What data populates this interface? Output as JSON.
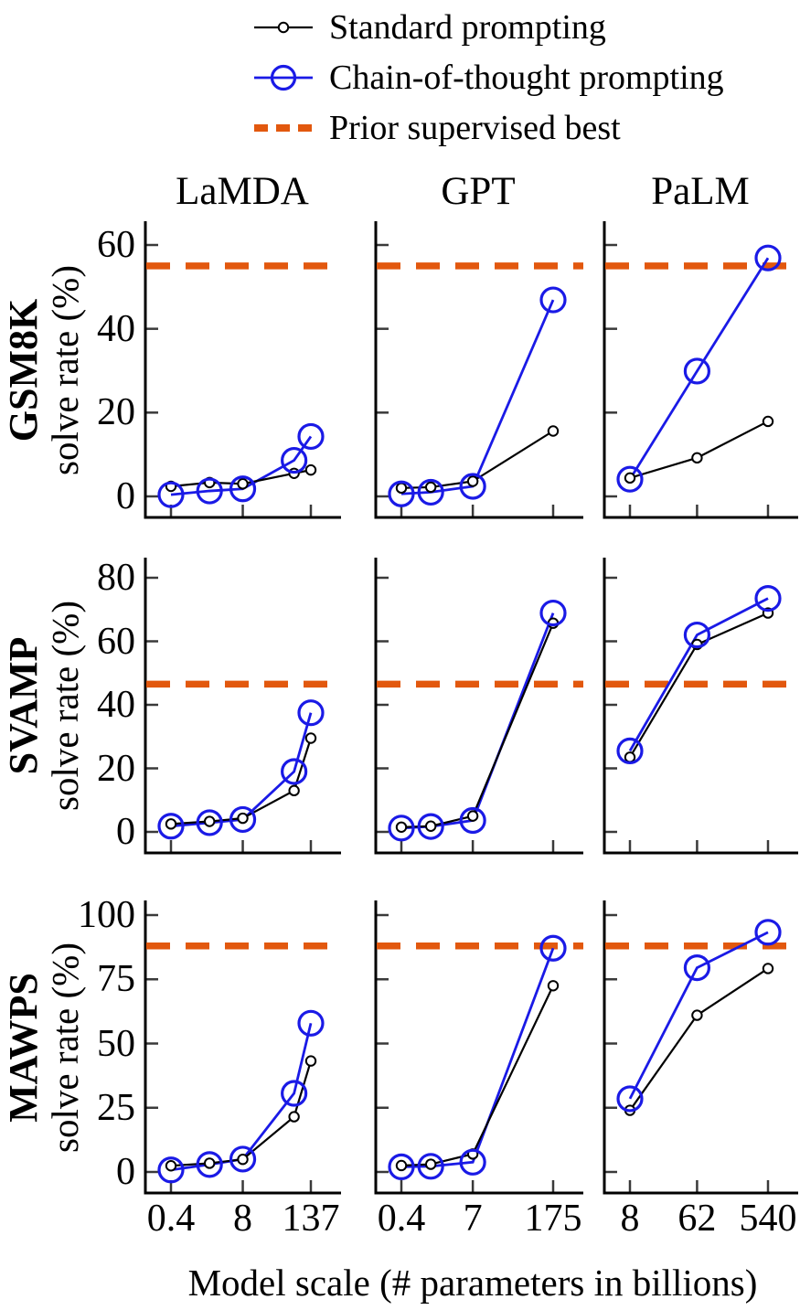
{
  "figure": {
    "background": "#ffffff",
    "colors": {
      "standard": "#000000",
      "cot": "#1a1ae6",
      "prior": "#e2580e",
      "axis": "#000000",
      "tick": "#3a3a3a"
    },
    "legend": {
      "position": "top",
      "items": [
        {
          "label": "Standard prompting",
          "key": "standard",
          "marker": "small-open-circle",
          "line": "solid-black"
        },
        {
          "label": "Chain-of-thought prompting",
          "key": "cot",
          "marker": "large-open-circle",
          "line": "solid-blue"
        },
        {
          "label": "Prior supervised best",
          "key": "prior",
          "marker": "none",
          "line": "dashed-orange"
        }
      ]
    },
    "columns": [
      {
        "title": "LaMDA"
      },
      {
        "title": "GPT"
      },
      {
        "title": "PaLM"
      }
    ],
    "rows": [
      {
        "benchmark": "GSM8K",
        "ylabel": "solve rate (%)"
      },
      {
        "benchmark": "SVAMP",
        "ylabel": "solve rate (%)"
      },
      {
        "benchmark": "MAWPS",
        "ylabel": "solve rate (%)"
      }
    ],
    "xlabel": "Model scale (# parameters in billions)",
    "x_axis_scale": "log",
    "grid": false
  },
  "chart_data": [
    {
      "type": "line",
      "benchmark": "GSM8K",
      "model": "LaMDA",
      "x": [
        0.4,
        2,
        8,
        68,
        137
      ],
      "xtick_values": [
        0.4,
        8,
        137
      ],
      "xtick_labels": [
        "0.4",
        "8",
        "137"
      ],
      "yticks": [
        0,
        20,
        40,
        60
      ],
      "ylim": [
        0,
        65
      ],
      "prior_supervised_best": 55,
      "series": [
        {
          "name": "Standard prompting",
          "values": [
            2.4,
            3.3,
            3.0,
            5.5,
            6.3
          ]
        },
        {
          "name": "Chain-of-thought prompting",
          "values": [
            0.4,
            1.3,
            1.8,
            8.6,
            14.3
          ]
        }
      ]
    },
    {
      "type": "line",
      "benchmark": "GSM8K",
      "model": "GPT",
      "x": [
        0.4,
        1.3,
        7,
        175
      ],
      "xtick_values": [
        0.4,
        7,
        175
      ],
      "xtick_labels": [
        "0.4",
        "7",
        "175"
      ],
      "yticks": [
        0,
        20,
        40,
        60
      ],
      "ylim": [
        0,
        65
      ],
      "prior_supervised_best": 55,
      "series": [
        {
          "name": "Standard prompting",
          "values": [
            2.0,
            2.2,
            3.6,
            15.6
          ]
        },
        {
          "name": "Chain-of-thought prompting",
          "values": [
            0.6,
            1.0,
            2.4,
            46.9
          ]
        }
      ]
    },
    {
      "type": "line",
      "benchmark": "GSM8K",
      "model": "PaLM",
      "x": [
        8,
        62,
        540
      ],
      "xtick_values": [
        8,
        62,
        540
      ],
      "xtick_labels": [
        "8",
        "62",
        "540"
      ],
      "yticks": [
        0,
        20,
        40,
        60
      ],
      "ylim": [
        0,
        65
      ],
      "prior_supervised_best": 55,
      "series": [
        {
          "name": "Standard prompting",
          "values": [
            4.4,
            9.2,
            17.9
          ]
        },
        {
          "name": "Chain-of-thought prompting",
          "values": [
            4.1,
            29.9,
            56.9
          ]
        }
      ]
    },
    {
      "type": "line",
      "benchmark": "SVAMP",
      "model": "LaMDA",
      "x": [
        0.4,
        2,
        8,
        68,
        137
      ],
      "xtick_values": [
        0.4,
        8,
        137
      ],
      "xtick_labels": [
        "0.4",
        "8",
        "137"
      ],
      "yticks": [
        0,
        20,
        40,
        60,
        80
      ],
      "ylim": [
        0,
        86
      ],
      "prior_supervised_best": 46.5,
      "series": [
        {
          "name": "Standard prompting",
          "values": [
            2.5,
            3.3,
            4.3,
            13.0,
            29.5
          ]
        },
        {
          "name": "Chain-of-thought prompting",
          "values": [
            1.8,
            2.9,
            3.9,
            19.0,
            37.5
          ]
        }
      ]
    },
    {
      "type": "line",
      "benchmark": "SVAMP",
      "model": "GPT",
      "x": [
        0.4,
        1.3,
        7,
        175
      ],
      "xtick_values": [
        0.4,
        7,
        175
      ],
      "xtick_labels": [
        "0.4",
        "7",
        "175"
      ],
      "yticks": [
        0,
        20,
        40,
        60,
        80
      ],
      "ylim": [
        0,
        86
      ],
      "prior_supervised_best": 46.5,
      "series": [
        {
          "name": "Standard prompting",
          "values": [
            1.5,
            1.8,
            5.0,
            65.7
          ]
        },
        {
          "name": "Chain-of-thought prompting",
          "values": [
            1.2,
            1.7,
            3.6,
            68.9
          ]
        }
      ]
    },
    {
      "type": "line",
      "benchmark": "SVAMP",
      "model": "PaLM",
      "x": [
        8,
        62,
        540
      ],
      "xtick_values": [
        8,
        62,
        540
      ],
      "xtick_labels": [
        "8",
        "62",
        "540"
      ],
      "yticks": [
        0,
        20,
        40,
        60,
        80
      ],
      "ylim": [
        0,
        86
      ],
      "prior_supervised_best": 46.5,
      "series": [
        {
          "name": "Standard prompting",
          "values": [
            23.5,
            59.0,
            68.9
          ]
        },
        {
          "name": "Chain-of-thought prompting",
          "values": [
            25.5,
            62.0,
            73.5
          ]
        }
      ]
    },
    {
      "type": "line",
      "benchmark": "MAWPS",
      "model": "LaMDA",
      "x": [
        0.4,
        2,
        8,
        68,
        137
      ],
      "xtick_values": [
        0.4,
        8,
        137
      ],
      "xtick_labels": [
        "0.4",
        "8",
        "137"
      ],
      "yticks": [
        0,
        25,
        50,
        75,
        100
      ],
      "ylim": [
        0,
        105
      ],
      "prior_supervised_best": 88,
      "series": [
        {
          "name": "Standard prompting",
          "values": [
            2.4,
            3.4,
            4.9,
            21.5,
            43.2
          ]
        },
        {
          "name": "Chain-of-thought prompting",
          "values": [
            0.8,
            2.9,
            5.0,
            30.6,
            57.9
          ]
        }
      ]
    },
    {
      "type": "line",
      "benchmark": "MAWPS",
      "model": "GPT",
      "x": [
        0.4,
        1.3,
        7,
        175
      ],
      "xtick_values": [
        0.4,
        7,
        175
      ],
      "xtick_labels": [
        "0.4",
        "7",
        "175"
      ],
      "yticks": [
        0,
        25,
        50,
        75,
        100
      ],
      "ylim": [
        0,
        105
      ],
      "prior_supervised_best": 88,
      "series": [
        {
          "name": "Standard prompting",
          "values": [
            2.5,
            3.0,
            7.0,
            72.5
          ]
        },
        {
          "name": "Chain-of-thought prompting",
          "values": [
            2.0,
            2.2,
            3.8,
            87.1
          ]
        }
      ]
    },
    {
      "type": "line",
      "benchmark": "MAWPS",
      "model": "PaLM",
      "x": [
        8,
        62,
        540
      ],
      "xtick_values": [
        8,
        62,
        540
      ],
      "xtick_labels": [
        "8",
        "62",
        "540"
      ],
      "yticks": [
        0,
        25,
        50,
        75,
        100
      ],
      "ylim": [
        0,
        105
      ],
      "prior_supervised_best": 88,
      "series": [
        {
          "name": "Standard prompting",
          "values": [
            24.0,
            61.0,
            79.2
          ]
        },
        {
          "name": "Chain-of-thought prompting",
          "values": [
            28.5,
            79.5,
            93.3
          ]
        }
      ]
    }
  ]
}
